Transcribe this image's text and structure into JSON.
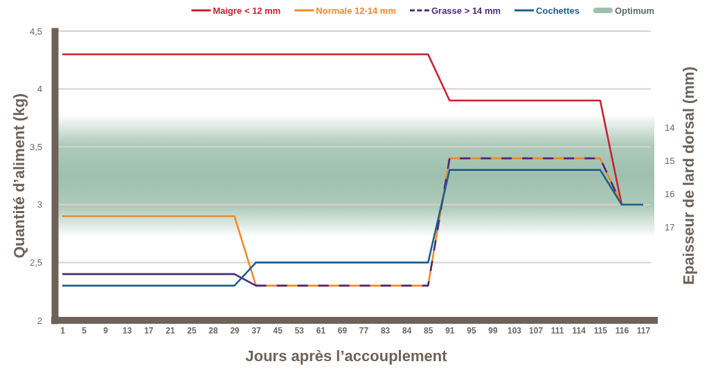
{
  "chart_data": {
    "type": "line",
    "xlabel": "Jours après l’accouplement",
    "ylabel": "Quantité d’aliment (kg)",
    "y2label": "Epaisseur de lard dorsal (mm)",
    "categories": [
      "1",
      "5",
      "9",
      "13",
      "17",
      "21",
      "25",
      "28",
      "29",
      "37",
      "45",
      "53",
      "61",
      "69",
      "77",
      "83",
      "84",
      "85",
      "91",
      "95",
      "99",
      "103",
      "107",
      "111",
      "114",
      "115",
      "116",
      "117"
    ],
    "series": [
      {
        "name": "Maigre < 12 mm",
        "color": "#c8202f",
        "values": [
          4.3,
          4.3,
          4.3,
          4.3,
          4.3,
          4.3,
          4.3,
          4.3,
          4.3,
          4.3,
          4.3,
          4.3,
          4.3,
          4.3,
          4.3,
          4.3,
          4.3,
          4.3,
          3.9,
          3.9,
          3.9,
          3.9,
          3.9,
          3.9,
          3.9,
          3.9,
          3.0,
          null
        ]
      },
      {
        "name": "Normale 12-14 mm",
        "color": "#f08a24",
        "values": [
          2.9,
          2.9,
          2.9,
          2.9,
          2.9,
          2.9,
          2.9,
          2.9,
          2.9,
          2.3,
          2.3,
          2.3,
          2.3,
          2.3,
          2.3,
          2.3,
          2.3,
          2.3,
          3.4,
          3.4,
          3.4,
          3.4,
          3.4,
          3.4,
          3.4,
          3.4,
          3.0,
          null
        ]
      },
      {
        "name": "Grasse > 14 mm",
        "color": "#4a2a80",
        "line_style": "dashed",
        "values": [
          2.4,
          2.4,
          2.4,
          2.4,
          2.4,
          2.4,
          2.4,
          2.4,
          2.4,
          2.3,
          2.3,
          2.3,
          2.3,
          2.3,
          2.3,
          2.3,
          2.3,
          2.3,
          3.4,
          3.4,
          3.4,
          3.4,
          3.4,
          3.4,
          3.4,
          3.4,
          3.0,
          null
        ]
      },
      {
        "name": "Cochettes",
        "color": "#1d5f8c",
        "values": [
          2.3,
          2.3,
          2.3,
          2.3,
          2.3,
          2.3,
          2.3,
          2.3,
          2.3,
          2.5,
          2.5,
          2.5,
          2.5,
          2.5,
          2.5,
          2.5,
          2.5,
          2.5,
          3.3,
          3.3,
          3.3,
          3.3,
          3.3,
          3.3,
          3.3,
          3.3,
          3.0,
          3.0
        ]
      }
    ],
    "ylim": [
      2,
      4.5
    ],
    "yticks": [
      2,
      {
        "value": 2.5,
        "label": "2,5"
      },
      3,
      {
        "value": 3.5,
        "label": "3,5"
      },
      4,
      {
        "value": 4.5,
        "label": "4,5"
      }
    ],
    "y2lim": [
      19.8,
      11.1
    ],
    "y2ticks": [
      14,
      15,
      16,
      17
    ],
    "bands": [
      {
        "axis": "y2",
        "from": 13.6,
        "to": 17.3,
        "label": "Optimum",
        "color": "#9fc0ae"
      }
    ],
    "grid": "y",
    "legend": "top right"
  }
}
